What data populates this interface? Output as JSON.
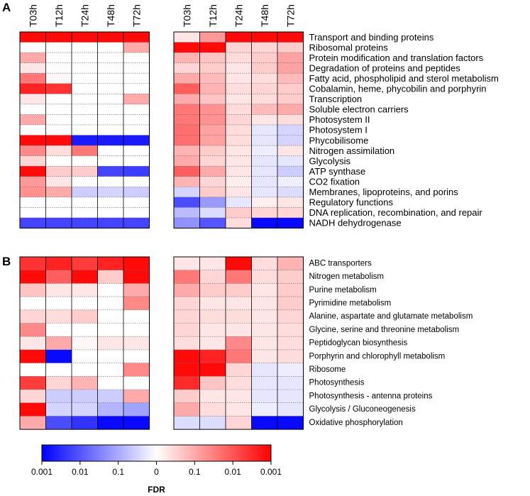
{
  "chart_data": {
    "type": "heatmap",
    "value_scale": "signed FDR score: positive = red, negative = blue, magnitude 0..3 corresponds to FDR 1 .. 0.001",
    "colorbar": {
      "label": "FDR",
      "ticks": [
        "0.001",
        "0.01",
        "0.1",
        "0",
        "0.1",
        "0.01",
        "0.001"
      ],
      "range": [
        -3,
        3
      ],
      "colors": {
        "low": "#0000ff",
        "mid": "#ffffff",
        "high": "#ff0000"
      }
    },
    "columns": [
      "T03h",
      "T12h",
      "T24h",
      "T48h",
      "T72h"
    ],
    "panels": [
      {
        "letter": "A",
        "rows": [
          "Transport and binding proteins",
          "Ribosomal proteins",
          "Protein modification and translation factors",
          "Degradation of proteins and peptides",
          "Fatty acid, phospholipid and sterol metabolism",
          "Cobalamin, heme, phycobilin and porphyrin",
          "Transcription",
          "Soluble electron carriers",
          "Photosystem II",
          "Photosystem I",
          "Phycobilisome",
          "Nitrogen assimilation",
          "Glycolysis",
          "ATP synthase",
          "CO2 fixation",
          "Membranes, lipoproteins, and porins",
          "Regulatory functions",
          "DNA replication, recombination, and repair",
          "NADH dehydrogenase"
        ],
        "left": [
          [
            2.9,
            2.9,
            2.9,
            2.9,
            2.9
          ],
          [
            0,
            0,
            0,
            0,
            1.0
          ],
          [
            1.0,
            0,
            0,
            0,
            0
          ],
          [
            0.3,
            0,
            0,
            0,
            0
          ],
          [
            1.6,
            0.1,
            0,
            0,
            0
          ],
          [
            2.6,
            2.4,
            0,
            0,
            0
          ],
          [
            0.3,
            0,
            0,
            0,
            1.0
          ],
          [
            0,
            0,
            0,
            0,
            0
          ],
          [
            1.0,
            0,
            0,
            0,
            0
          ],
          [
            0,
            0,
            0,
            0,
            0
          ],
          [
            2.9,
            2.9,
            -2.7,
            -2.7,
            -2.7
          ],
          [
            1.4,
            0.4,
            1.6,
            0,
            0
          ],
          [
            0.5,
            0,
            0,
            0,
            0
          ],
          [
            2.9,
            0.6,
            0.6,
            -2.2,
            -2.3
          ],
          [
            1.2,
            0.3,
            0,
            0,
            0
          ],
          [
            1.3,
            1.0,
            -0.6,
            -0.5,
            -0.6
          ],
          [
            0,
            0,
            0,
            0,
            0
          ],
          [
            0,
            0,
            0,
            0,
            0
          ],
          [
            -2.2,
            -2.2,
            -2.2,
            -2.2,
            -2.2
          ]
        ],
        "right": [
          [
            0.3,
            1.2,
            2.9,
            2.9,
            2.9
          ],
          [
            2.9,
            2.9,
            0.5,
            0.5,
            0.6
          ],
          [
            0.9,
            0.7,
            0.4,
            0.6,
            1.1
          ],
          [
            0.5,
            0.6,
            0.3,
            0.6,
            1.1
          ],
          [
            1.0,
            0.8,
            0.3,
            0.4,
            0.8
          ],
          [
            1.9,
            0.9,
            0.4,
            0.5,
            0.6
          ],
          [
            1.0,
            0.7,
            0.3,
            0.4,
            0.6
          ],
          [
            1.6,
            1.3,
            0.4,
            0.8,
            1.0
          ],
          [
            1.6,
            1.3,
            0.5,
            0.3,
            0.4
          ],
          [
            1.7,
            1.1,
            0.4,
            -0.3,
            -0.5
          ],
          [
            1.7,
            1.1,
            0.4,
            -0.3,
            -0.5
          ],
          [
            0.9,
            0.6,
            0.3,
            -0.2,
            0.3
          ],
          [
            1.0,
            0.5,
            0.3,
            -0.3,
            -0.3
          ],
          [
            1.9,
            1.0,
            0.3,
            -0.3,
            -0.6
          ],
          [
            0.9,
            0.5,
            0.2,
            -0.3,
            -0.2
          ],
          [
            -0.5,
            0.6,
            0.3,
            -0.3,
            -0.4
          ],
          [
            -2.1,
            -1.2,
            -0.3,
            0.2,
            0.3
          ],
          [
            -0.8,
            -0.4,
            0.6,
            0.5,
            0.5
          ],
          [
            -1.3,
            -2.0,
            0.4,
            -2.9,
            -2.9
          ]
        ]
      },
      {
        "letter": "B",
        "rows": [
          "ABC transporters",
          "Nitrogen metabolism",
          "Purine metabolism",
          "Pyrimidine metabolism",
          "Alanine, aspartate and glutamate metabolism",
          "Glycine, serine and threonine metabolism",
          "Peptidoglycan biosynthesis",
          "Porphyrin and chlorophyll metabolism",
          "Ribosome",
          "Photosynthesis",
          "Photosynthesis - antenna proteins",
          "Glycolysis / Gluconeogenesis",
          "Oxidative phosphorylation"
        ],
        "left": [
          [
            2.4,
            2.6,
            2.3,
            2.6,
            2.9
          ],
          [
            2.9,
            1.9,
            2.9,
            0.6,
            2.9
          ],
          [
            0.7,
            0.3,
            0.3,
            0,
            1.0
          ],
          [
            0,
            0,
            0,
            0,
            1.4
          ],
          [
            0.5,
            0.4,
            0.6,
            0,
            0
          ],
          [
            1.4,
            0,
            0,
            0,
            0
          ],
          [
            0.3,
            1.0,
            0.1,
            0.3,
            0.3
          ],
          [
            2.9,
            -2.9,
            0,
            0,
            0
          ],
          [
            0,
            0,
            0,
            0,
            1.4
          ],
          [
            2.3,
            0.5,
            0.9,
            0,
            0
          ],
          [
            0.5,
            -0.6,
            -0.6,
            -0.6,
            1.0
          ],
          [
            2.9,
            -0.5,
            -0.5,
            -0.9,
            -1.1
          ],
          [
            1.0,
            -2.1,
            -2.4,
            -2.9,
            -2.9
          ]
        ],
        "right": [
          [
            0.3,
            0.3,
            2.9,
            0.4,
            0.9
          ],
          [
            1.6,
            0.5,
            1.6,
            0.4,
            0.6
          ],
          [
            1.0,
            0.6,
            0.6,
            0.3,
            0.6
          ],
          [
            0.5,
            0.3,
            0.3,
            0.3,
            0.6
          ],
          [
            0.5,
            0.4,
            0.4,
            0.3,
            0.5
          ],
          [
            0.5,
            0.3,
            0.3,
            0.3,
            0.4
          ],
          [
            0.4,
            0.3,
            1.4,
            0.3,
            0.4
          ],
          [
            2.9,
            2.6,
            1.6,
            0.3,
            0.4
          ],
          [
            2.9,
            2.9,
            0.5,
            -0.3,
            -0.2
          ],
          [
            2.5,
            0.7,
            0.4,
            -0.3,
            -0.3
          ],
          [
            0.6,
            0.3,
            0.3,
            -0.3,
            -0.3
          ],
          [
            1.0,
            0.4,
            0.3,
            -0.2,
            -0.3
          ],
          [
            -0.4,
            -0.4,
            0.5,
            -2.9,
            -2.9
          ]
        ]
      }
    ]
  }
}
